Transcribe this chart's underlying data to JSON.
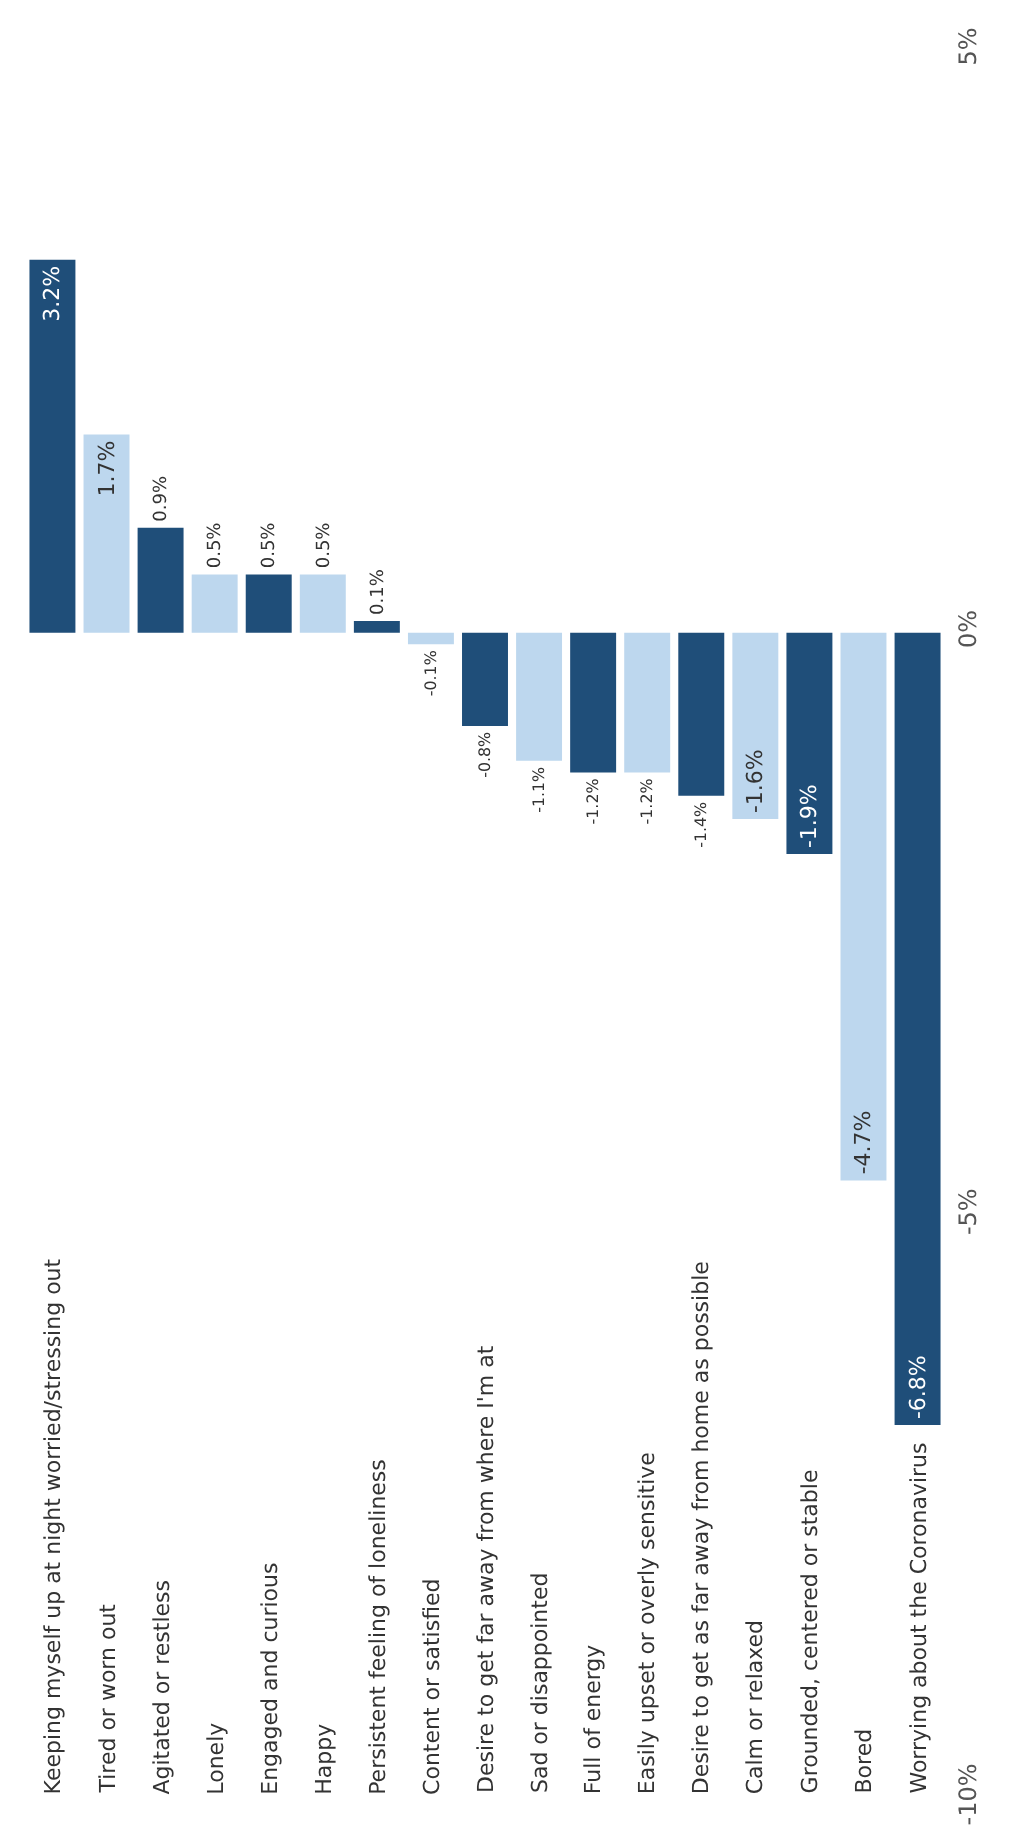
{
  "chart_data": {
    "type": "bar",
    "categories": [
      "Keeping myself up at night worried/stressing out",
      "Tired or worn out",
      "Agitated or restless",
      "Lonely",
      "Engaged and curious",
      "Happy",
      "Persistent feeling of loneliness",
      "Content or satisfied",
      "Desire to get far away from where I'm at",
      "Sad or disappointed",
      "Full of energy",
      "Easily upset or overly sensitive",
      "Desire to get as far away from home as possible",
      "Calm or relaxed",
      "Grounded, centered or stable",
      "Bored",
      "Worrying about the Coronavirus"
    ],
    "values": [
      3.2,
      1.7,
      0.9,
      0.5,
      0.5,
      0.5,
      0.1,
      -0.1,
      -0.8,
      -1.1,
      -1.2,
      -1.2,
      -1.4,
      -1.6,
      -1.9,
      -4.7,
      -6.8
    ],
    "colors": [
      "#1f4e79",
      "#bdd7ee",
      "#1f4e79",
      "#bdd7ee",
      "#1f4e79",
      "#bdd7ee",
      "#1f4e79",
      "#bdd7ee",
      "#1f4e79",
      "#bdd7ee",
      "#1f4e79",
      "#bdd7ee",
      "#1f4e79",
      "#bdd7ee",
      "#1f4e79",
      "#bdd7ee",
      "#1f4e79"
    ],
    "value_labels": [
      "3.2%",
      "1.7%",
      "0.9%",
      "0.5%",
      "0.5%",
      "0.5%",
      "0.1%",
      "-0.1%",
      "-0.8%",
      "-1.1%",
      "-1.2%",
      "-1.2%",
      "-1.4%",
      "-1.6%",
      "-1.9%",
      "-4.7%",
      "-6.8%"
    ],
    "ylim": [
      -10,
      5
    ],
    "yticks": [
      {
        "value": -10,
        "label": "-10%"
      },
      {
        "value": -5,
        "label": "-5%"
      },
      {
        "value": 0,
        "label": "0%"
      },
      {
        "value": 5,
        "label": "5%"
      }
    ],
    "tick_labels": "y",
    "legend": false
  }
}
